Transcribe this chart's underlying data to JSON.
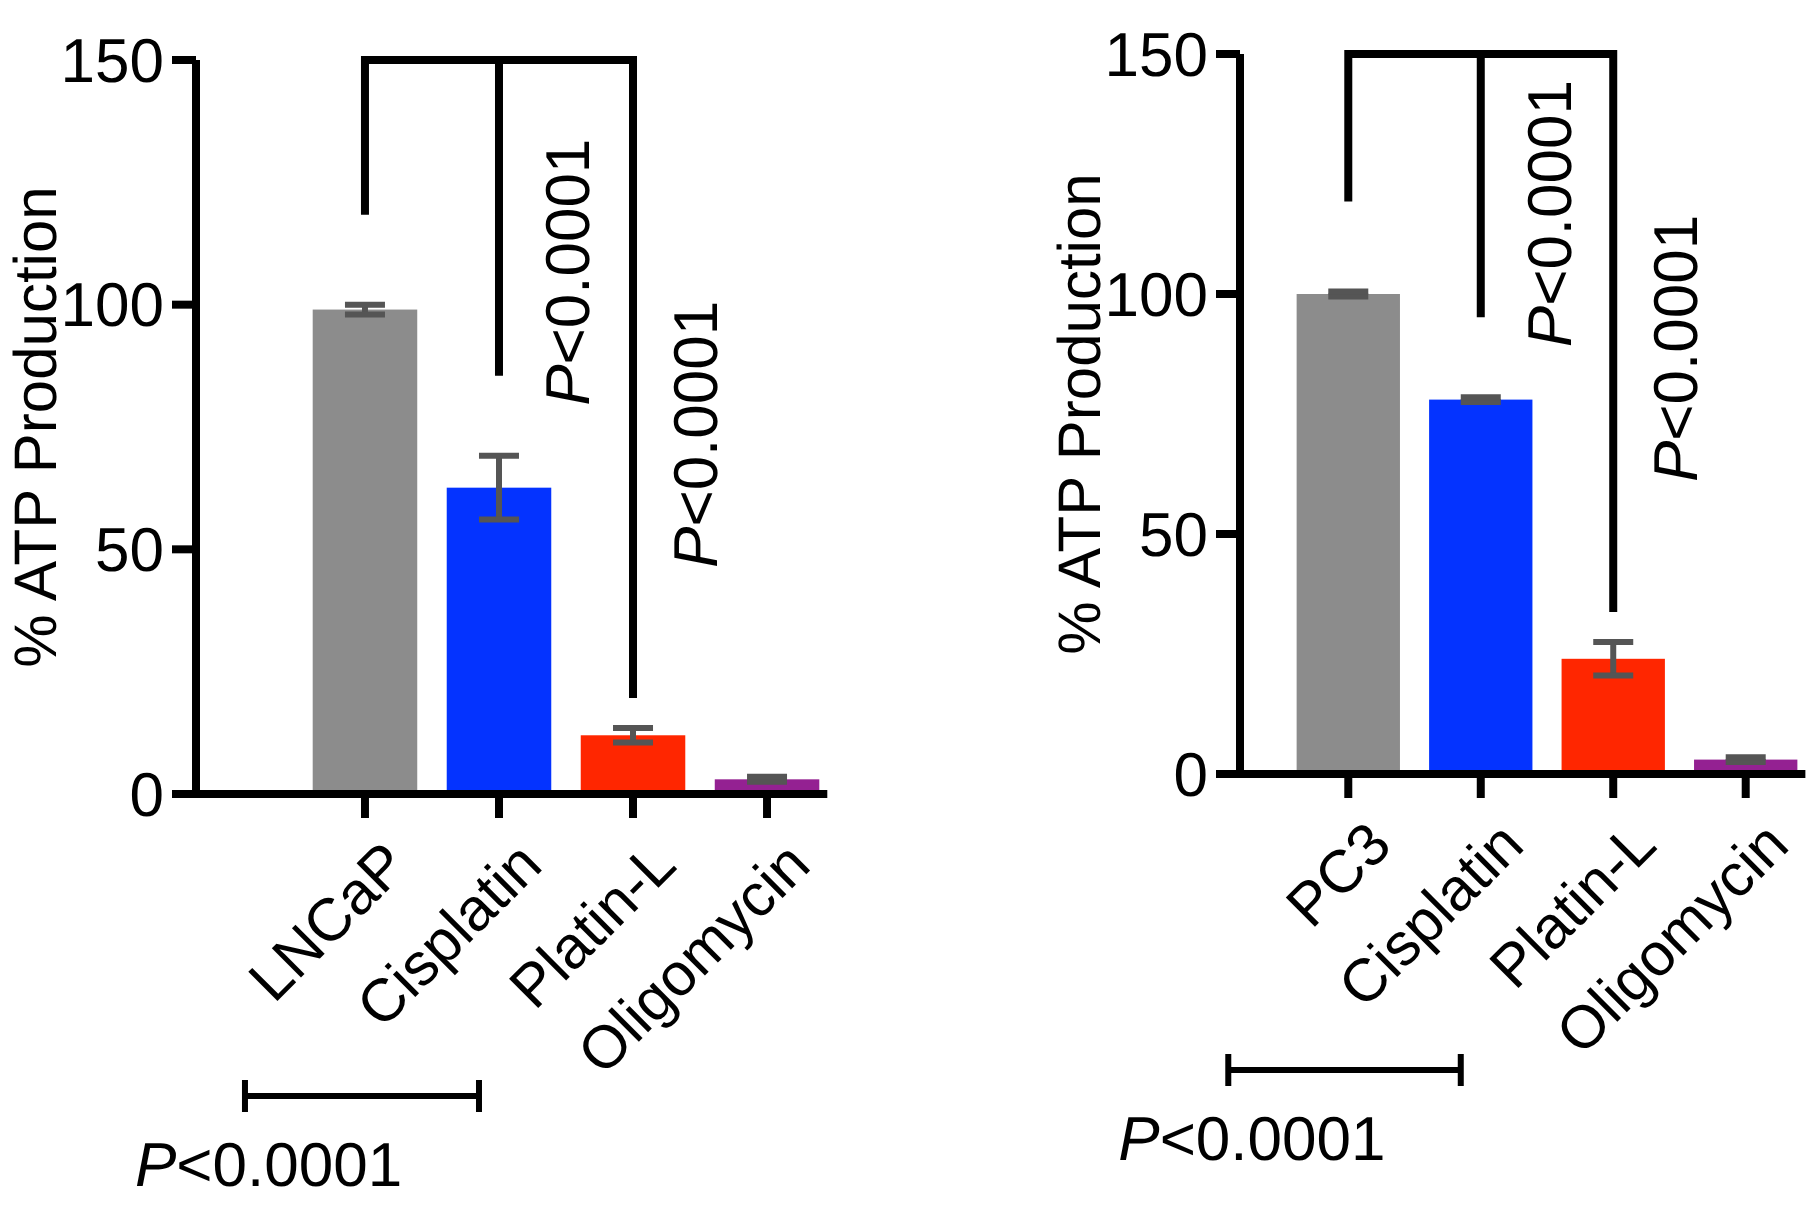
{
  "chart_data": [
    {
      "type": "bar",
      "ylabel": "% ATP Production",
      "categories": [
        "LNCaP",
        "Cisplatin",
        "Platin-L",
        "Oligomycin"
      ],
      "values": [
        99,
        62.6,
        12,
        3
      ],
      "colors": [
        "#8c8c8c",
        "#0433ff",
        "#ff2600",
        "#942192"
      ],
      "errors": [
        1,
        6.5,
        1.5,
        0.5
      ],
      "ylim": [
        0,
        150
      ],
      "yticks": [
        0,
        50,
        100,
        150
      ],
      "annotations": [
        "P<0.0001",
        "P<0.0001",
        "P<0.0001"
      ]
    },
    {
      "type": "bar",
      "ylabel": "% ATP Production",
      "categories": [
        "PC3",
        "Cisplatin",
        "Platin-L",
        "Oligomycin"
      ],
      "values": [
        100,
        78,
        24,
        3
      ],
      "colors": [
        "#8c8c8c",
        "#0433ff",
        "#ff2600",
        "#942192"
      ],
      "errors": [
        0.5,
        0.5,
        3.5,
        0.5
      ],
      "ylim": [
        0,
        150
      ],
      "yticks": [
        0,
        50,
        100,
        150
      ],
      "annotations": [
        "P<0.0001",
        "P<0.0001",
        "P<0.0001"
      ]
    }
  ]
}
